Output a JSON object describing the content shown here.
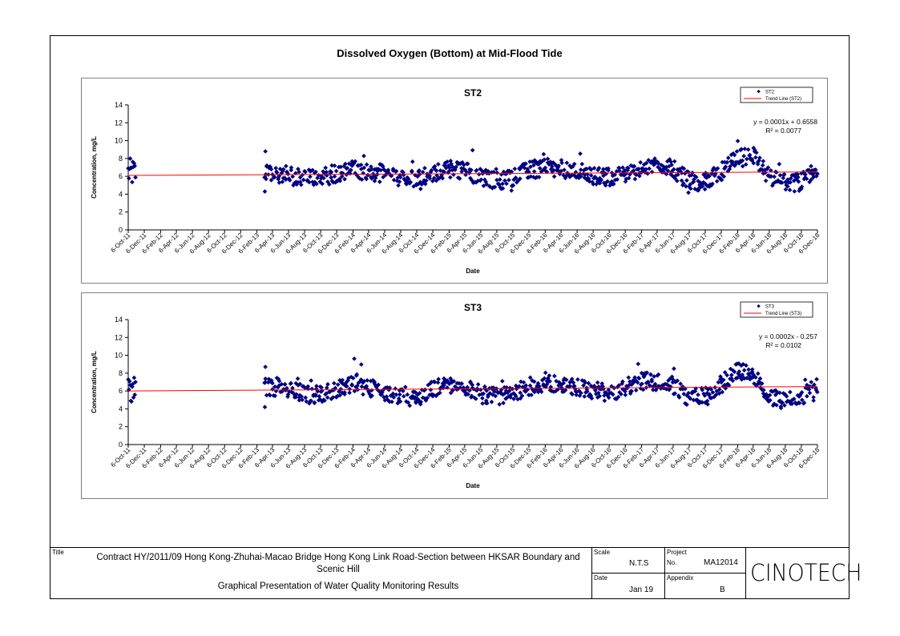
{
  "page": {
    "main_title": "Dissolved Oxygen (Bottom) at Mid-Flood Tide"
  },
  "chart_data": [
    {
      "type": "scatter",
      "title": "ST2",
      "xlabel": "Date",
      "ylabel": "Concentration, mg/L",
      "ylim": [
        0,
        14
      ],
      "yticks": [
        0,
        2,
        4,
        6,
        8,
        10,
        12,
        14
      ],
      "x_tick_labels": [
        "6-Oct-11",
        "6-Dec-11",
        "6-Feb-12",
        "6-Apr-12",
        "6-Jun-12",
        "6-Aug-12",
        "6-Oct-12",
        "6-Dec-12",
        "6-Feb-13",
        "6-Apr-13",
        "6-Jun-13",
        "6-Aug-13",
        "6-Oct-13",
        "6-Dec-13",
        "6-Feb-14",
        "6-Apr-14",
        "6-Jun-14",
        "6-Aug-14",
        "6-Oct-14",
        "6-Dec-14",
        "6-Feb-15",
        "6-Apr-15",
        "6-Jun-15",
        "6-Aug-15",
        "6-Oct-15",
        "6-Dec-15",
        "6-Feb-16",
        "6-Apr-16",
        "6-Jun-16",
        "6-Aug-16",
        "6-Oct-16",
        "6-Dec-16",
        "6-Feb-17",
        "6-Apr-17",
        "6-Jun-17",
        "6-Aug-17",
        "6-Oct-17",
        "6-Dec-17",
        "6-Feb-18",
        "6-Apr-18",
        "6-Jun-18",
        "6-Aug-18",
        "6-Oct-18",
        "6-Dec-18"
      ],
      "legend": {
        "position": "top-right",
        "entries": [
          "ST2",
          "Trend Line (ST2)"
        ]
      },
      "equation": "y = 0.0001x + 0.6558",
      "r_squared": "R² = 0.0077",
      "trend": {
        "x_start": "6-Oct-11",
        "y_start": 6.1,
        "x_end": "6-Dec-18",
        "y_end": 6.5
      },
      "series": [
        {
          "name": "ST2",
          "color": "#000080",
          "trend_color": "#ff0000",
          "profile": [
            [
              "6-Oct-11",
              6.4
            ],
            [
              "6-Nov-11",
              6.4
            ],
            [
              "6-Mar-13",
              6.5
            ],
            [
              "6-Jun-13",
              6.1
            ],
            [
              "6-Aug-13",
              5.7
            ],
            [
              "6-Oct-13",
              5.9
            ],
            [
              "6-Dec-13",
              6.3
            ],
            [
              "6-Feb-14",
              6.8
            ],
            [
              "6-Apr-14",
              6.5
            ],
            [
              "6-Jun-14",
              6.3
            ],
            [
              "6-Aug-14",
              5.6
            ],
            [
              "6-Oct-14",
              5.8
            ],
            [
              "6-Dec-14",
              6.4
            ],
            [
              "6-Feb-15",
              6.8
            ],
            [
              "6-Apr-15",
              6.7
            ],
            [
              "6-Jun-15",
              5.9
            ],
            [
              "6-Aug-15",
              5.5
            ],
            [
              "6-Oct-15",
              5.9
            ],
            [
              "6-Dec-15",
              6.7
            ],
            [
              "6-Feb-16",
              7.0
            ],
            [
              "6-Apr-16",
              6.9
            ],
            [
              "6-Jun-16",
              6.5
            ],
            [
              "6-Aug-16",
              6.1
            ],
            [
              "6-Oct-16",
              5.9
            ],
            [
              "6-Dec-16",
              6.2
            ],
            [
              "6-Feb-17",
              7.0
            ],
            [
              "6-Apr-17",
              7.4
            ],
            [
              "6-Jun-17",
              6.8
            ],
            [
              "6-Aug-17",
              5.4
            ],
            [
              "6-Oct-17",
              5.4
            ],
            [
              "6-Dec-17",
              6.6
            ],
            [
              "6-Feb-18",
              8.0
            ],
            [
              "6-Apr-18",
              8.3
            ],
            [
              "6-Jun-18",
              5.8
            ],
            [
              "6-Aug-18",
              5.2
            ],
            [
              "6-Oct-18",
              5.4
            ],
            [
              "6-Dec-18",
              6.8
            ]
          ]
        }
      ]
    },
    {
      "type": "scatter",
      "title": "ST3",
      "xlabel": "Date",
      "ylabel": "Concentration, mg/L",
      "ylim": [
        0,
        14
      ],
      "yticks": [
        0,
        2,
        4,
        6,
        8,
        10,
        12,
        14
      ],
      "x_tick_labels": [
        "6-Oct-11",
        "6-Dec-11",
        "6-Feb-12",
        "6-Apr-12",
        "6-Jun-12",
        "6-Aug-12",
        "6-Oct-12",
        "6-Dec-12",
        "6-Feb-13",
        "6-Apr-13",
        "6-Jun-13",
        "6-Aug-13",
        "6-Oct-13",
        "6-Dec-13",
        "6-Feb-14",
        "6-Apr-14",
        "6-Jun-14",
        "6-Aug-14",
        "6-Oct-14",
        "6-Dec-14",
        "6-Feb-15",
        "6-Apr-15",
        "6-Jun-15",
        "6-Aug-15",
        "6-Oct-15",
        "6-Dec-15",
        "6-Feb-16",
        "6-Apr-16",
        "6-Jun-16",
        "6-Aug-16",
        "6-Oct-16",
        "6-Dec-16",
        "6-Feb-17",
        "6-Apr-17",
        "6-Jun-17",
        "6-Aug-17",
        "6-Oct-17",
        "6-Dec-17",
        "6-Feb-18",
        "6-Apr-18",
        "6-Jun-18",
        "6-Aug-18",
        "6-Oct-18",
        "6-Dec-18"
      ],
      "legend": {
        "position": "top-right",
        "entries": [
          "ST3",
          "Trend Line (ST3)"
        ]
      },
      "equation": "y = 0.0002x - 0.257",
      "r_squared": "R² = 0.0102",
      "trend": {
        "x_start": "6-Oct-11",
        "y_start": 6.0,
        "x_end": "6-Dec-18",
        "y_end": 6.5
      },
      "series": [
        {
          "name": "ST3",
          "color": "#000080",
          "trend_color": "#ff0000",
          "profile": [
            [
              "6-Oct-11",
              6.3
            ],
            [
              "6-Nov-11",
              6.5
            ],
            [
              "6-Mar-13",
              6.4
            ],
            [
              "6-May-13",
              6.5
            ],
            [
              "6-Jul-13",
              5.9
            ],
            [
              "6-Sep-13",
              5.5
            ],
            [
              "6-Nov-13",
              6.0
            ],
            [
              "6-Jan-14",
              6.5
            ],
            [
              "6-Feb-14",
              7.0
            ],
            [
              "6-Apr-14",
              6.3
            ],
            [
              "6-Jun-14",
              5.9
            ],
            [
              "6-Aug-14",
              5.4
            ],
            [
              "6-Oct-14",
              5.6
            ],
            [
              "6-Dec-14",
              6.2
            ],
            [
              "6-Feb-15",
              6.8
            ],
            [
              "6-Apr-15",
              6.5
            ],
            [
              "6-Jun-15",
              5.6
            ],
            [
              "6-Aug-15",
              5.3
            ],
            [
              "6-Oct-15",
              5.6
            ],
            [
              "6-Dec-15",
              6.5
            ],
            [
              "6-Feb-16",
              6.9
            ],
            [
              "6-Apr-16",
              6.8
            ],
            [
              "6-Jun-16",
              6.3
            ],
            [
              "6-Aug-16",
              6.0
            ],
            [
              "6-Oct-16",
              5.8
            ],
            [
              "6-Dec-16",
              6.4
            ],
            [
              "6-Feb-17",
              7.1
            ],
            [
              "6-Apr-17",
              7.0
            ],
            [
              "6-Jun-17",
              6.6
            ],
            [
              "6-Aug-17",
              5.1
            ],
            [
              "6-Oct-17",
              5.6
            ],
            [
              "6-Dec-17",
              6.8
            ],
            [
              "6-Feb-18",
              8.4
            ],
            [
              "6-Apr-18",
              7.6
            ],
            [
              "6-Jun-18",
              5.3
            ],
            [
              "6-Aug-18",
              5.0
            ],
            [
              "6-Oct-18",
              5.5
            ],
            [
              "6-Dec-18",
              6.6
            ]
          ]
        }
      ]
    }
  ],
  "titleblock": {
    "title_label": "Title",
    "title_line1": "Contract HY/2011/09 Hong Kong-Zhuhai-Macao Bridge Hong Kong Link Road-Section between HKSAR Boundary and Scenic Hill",
    "title_line2": "Graphical Presentation of Water Quality Monitoring Results",
    "scale_label": "Scale",
    "scale_value": "N.T.S",
    "project_label": "Project",
    "no_label": "No.",
    "project_value": "MA12014",
    "date_label": "Date",
    "date_value": "Jan 19",
    "appendix_label": "Appendix",
    "appendix_value": "B",
    "logo_text": "CINOTECH"
  }
}
